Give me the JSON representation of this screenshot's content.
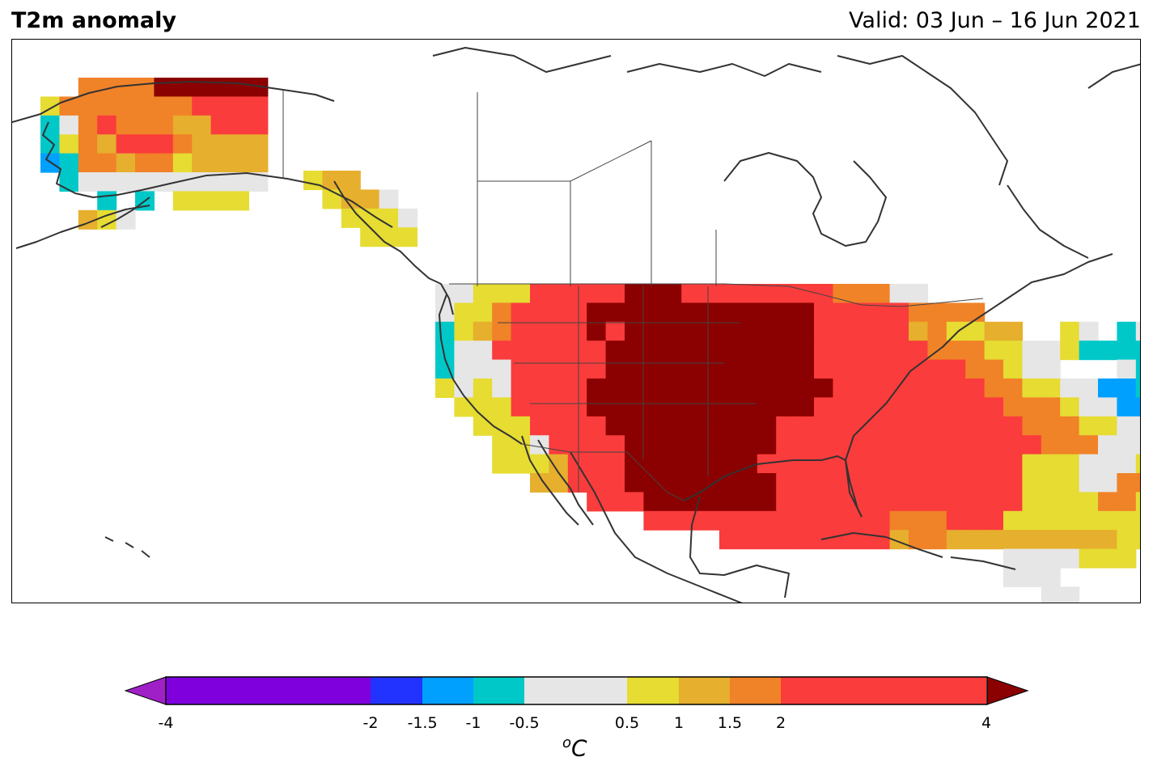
{
  "header": {
    "title": "T2m anomaly",
    "valid": "Valid: 03 Jun – 16 Jun 2021"
  },
  "colorbar": {
    "unit_base": "C",
    "unit_sup": "o",
    "ticks": [
      {
        "v": -4,
        "label": "-4"
      },
      {
        "v": -2,
        "label": "-2"
      },
      {
        "v": -1.5,
        "label": "-1.5"
      },
      {
        "v": -1,
        "label": "-1"
      },
      {
        "v": -0.5,
        "label": "-0.5"
      },
      {
        "v": 0.5,
        "label": "0.5"
      },
      {
        "v": 1,
        "label": "1"
      },
      {
        "v": 1.5,
        "label": "1.5"
      },
      {
        "v": 2,
        "label": "2"
      },
      {
        "v": 4,
        "label": "4"
      }
    ],
    "bins": [
      {
        "from": -4,
        "to": -2,
        "color": "#8000dd"
      },
      {
        "from": -2,
        "to": -1.5,
        "color": "#2233ff"
      },
      {
        "from": -1.5,
        "to": -1,
        "color": "#00a0ff"
      },
      {
        "from": -1,
        "to": -0.5,
        "color": "#00c8c8"
      },
      {
        "from": -0.5,
        "to": 0.5,
        "color": "#e6e6e6"
      },
      {
        "from": 0.5,
        "to": 1,
        "color": "#e6dc32"
      },
      {
        "from": 1,
        "to": 1.5,
        "color": "#e6af2d"
      },
      {
        "from": 1.5,
        "to": 2,
        "color": "#f08228"
      },
      {
        "from": 2,
        "to": 4,
        "color": "#fa3c3c"
      }
    ],
    "under_color": "#a020c8",
    "over_color": "#8b0000"
  },
  "map": {
    "palette": {
      "g": "#e6e6e6",
      "y": "#e6dc32",
      "o": "#e6af2d",
      "O": "#f08228",
      "r": "#fa3c3c",
      "R": "#8b0000",
      "c": "#00c8c8",
      "b": "#00a0ff"
    },
    "regions": [
      {
        "name": "alaska",
        "rows": [
          "..OOOORRRRRR",
          "yOOOOOOOrrrr",
          "cgOrOOOoorrr",
          "cyOorrrOoooo",
          "bcOOoOOyoooo",
          ".cgggggggggg",
          "...c.c.yyyy.",
          "..oyg......."
        ]
      },
      {
        "name": "panhandle",
        "rows": [
          "yoo...",
          ".yoog.",
          "..yyyg",
          "...yyy"
        ]
      },
      {
        "name": "conus",
        "rows": [
          "ggyyyrrrrrRRRrrrrrrrrOOOgg.................",
          "gyyOrrrrRRRRRRRRRRRRrrrrrOOOO..............",
          "cyoOrrrrRrRRRRRRRRRRrrrrroOyyoo..yg.cgcgbbb",
          "cggrrrrrrRRRRRRRRRRRrrrrrrOOOyyggyccccbbbg.",
          "cgggrrrrrRRRRRRRRRRRrrrrrrrrOOygg...gcc....",
          "ygygrrrrRRRRRRRRRRRRRrrrrrrrrOOyyggbbcc....",
          ".yyyrrrrRRRRRRRRRRRRrrrrrrrrrrOOOyggbbcc...",
          "..yyyrrrrRRRRRRRRRrrrrrrrrrrrrrOOOyyggb....",
          "...yygrrrrRRRRRRRRrrrrrrrrrrrrrrOOOgggg....",
          "...yyyorrrRRRRRRRrrrrrrrrrrrrrryyygggyy....",
          ".....oorrrRRRRRRRRrrrrrrrrrrrrryyyggOOO....",
          "........rrrRRRRRRRrrrrrrrrrrrrryyyyOOy.....",
          "...........rrrrrrrrrrrrrOOOrrryyyyyyyy.....",
          "...............rrrrrrrrroOOoooooooooyy.....",
          "..............................ggggyyy......",
          "..............................ggg...........",
          "................................gg.........."
        ]
      }
    ]
  }
}
